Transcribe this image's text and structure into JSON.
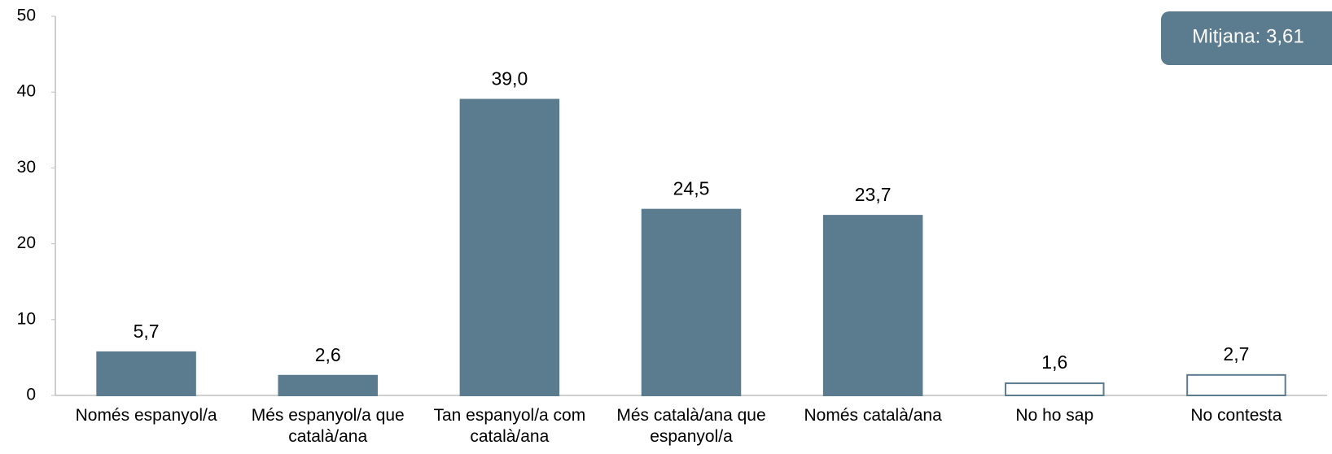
{
  "chart_data": {
    "type": "bar",
    "categories": [
      "Només espanyol/a",
      "Més espanyol/a que català/ana",
      "Tan espanyol/a com català/ana",
      "Més català/ana que espanyol/a",
      "Només català/ana",
      "No ho sap",
      "No contesta"
    ],
    "values": [
      5.7,
      2.6,
      39.0,
      24.5,
      23.7,
      1.6,
      2.7
    ],
    "value_labels": [
      "5,7",
      "2,6",
      "39,0",
      "24,5",
      "23,7",
      "1,6",
      "2,7"
    ],
    "fill_colors": [
      "#5b7b8f",
      "#5b7b8f",
      "#5b7b8f",
      "#5b7b8f",
      "#5b7b8f",
      "#ffffff",
      "#ffffff"
    ],
    "edge_color": "#5b7b8f",
    "ylim": [
      0,
      50
    ],
    "yticks": [
      0,
      10,
      20,
      30,
      40,
      50
    ],
    "annotation": "Mitjana: 3,61"
  }
}
